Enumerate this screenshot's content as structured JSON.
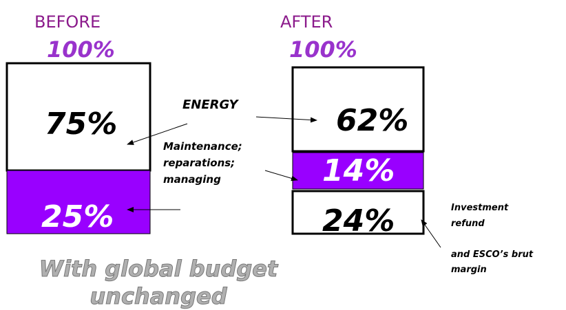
{
  "before": {
    "heading": "BEFORE",
    "total": "100%",
    "segments": [
      "75%",
      "25%"
    ]
  },
  "after": {
    "heading": "AFTER",
    "total": "100%",
    "segments": [
      "62%",
      "14%",
      "24%"
    ]
  },
  "labels": {
    "energy": "ENERGY",
    "maintenance": [
      "Maintenance;",
      "reparations;",
      "managing"
    ],
    "investment": [
      "Investment",
      "refund"
    ],
    "margin": [
      "and ESCO’s brut",
      "margin"
    ]
  },
  "footer": [
    "With global budget",
    "unchanged"
  ]
}
